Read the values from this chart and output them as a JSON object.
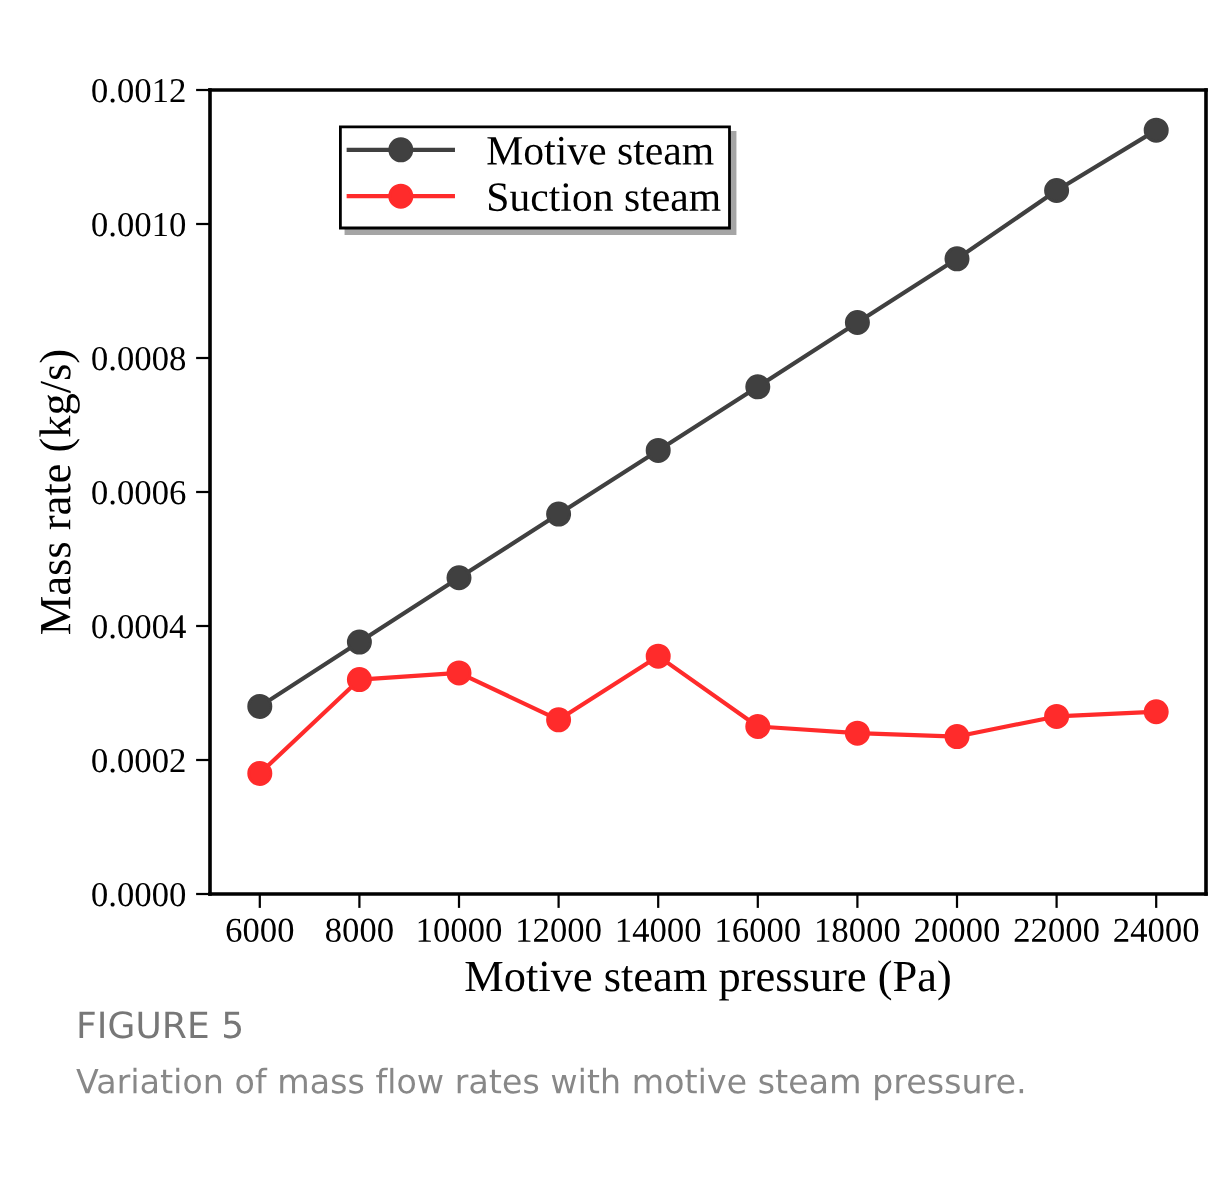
{
  "chart_data": {
    "type": "line",
    "xlabel": "Motive steam pressure (Pa)",
    "ylabel": "Mass rate (kg/s)",
    "x": [
      6000,
      8000,
      10000,
      12000,
      14000,
      16000,
      18000,
      20000,
      22000,
      24000
    ],
    "series": [
      {
        "name": "Motive steam",
        "color": "#404040",
        "values": [
          0.00028,
          0.000376,
          0.000472,
          0.000567,
          0.000662,
          0.000757,
          0.000853,
          0.000948,
          0.00105,
          0.00114
        ]
      },
      {
        "name": "Suction steam",
        "color": "#ff2b2b",
        "values": [
          0.00018,
          0.00032,
          0.00033,
          0.00026,
          0.000355,
          0.00025,
          0.00024,
          0.000235,
          0.000265,
          0.000272
        ]
      }
    ],
    "xlim": [
      5000,
      25000
    ],
    "xticks": [
      6000,
      8000,
      10000,
      12000,
      14000,
      16000,
      18000,
      20000,
      22000,
      24000
    ],
    "ylim": [
      0,
      0.0012
    ],
    "yticks": [
      {
        "value": 0,
        "label": "0.0000"
      },
      {
        "value": 0.0002,
        "label": "0.0002"
      },
      {
        "value": 0.0004,
        "label": "0.0004"
      },
      {
        "value": 0.0006,
        "label": "0.0006"
      },
      {
        "value": 0.0008,
        "label": "0.0008"
      },
      {
        "value": 0.001,
        "label": "0.0010"
      },
      {
        "value": 0.0012,
        "label": "0.0012"
      }
    ],
    "marker": "circle",
    "line_style": "solid",
    "grid": false,
    "legend": "top left",
    "annotations": [
      "FIGURE 5",
      "Variation of mass flow rates with motive steam pressure."
    ]
  }
}
